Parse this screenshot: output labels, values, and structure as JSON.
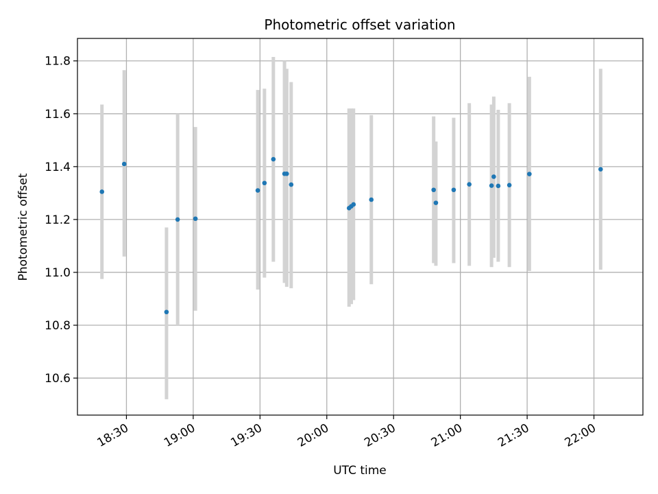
{
  "chart_data": {
    "type": "scatter",
    "title": "Photometric offset variation",
    "xlabel": "UTC time",
    "ylabel": "Photometric offset",
    "x_axis_kind": "time",
    "xlim": [
      "18:08",
      "22:22"
    ],
    "ylim": [
      10.46,
      11.885
    ],
    "x_ticks": [
      "18:30",
      "19:00",
      "19:30",
      "20:00",
      "20:30",
      "21:00",
      "21:30",
      "22:00"
    ],
    "y_ticks": [
      10.6,
      10.8,
      11.0,
      11.2,
      11.4,
      11.6,
      11.8
    ],
    "grid": true,
    "error_bar_color": "#d3d3d3",
    "point_color": "#1f77b4",
    "points": [
      {
        "x": "18:19",
        "y": 11.305,
        "lo": 10.975,
        "hi": 11.635
      },
      {
        "x": "18:29",
        "y": 11.41,
        "lo": 11.06,
        "hi": 11.765
      },
      {
        "x": "18:48",
        "y": 10.85,
        "lo": 10.52,
        "hi": 11.17
      },
      {
        "x": "18:53",
        "y": 11.2,
        "lo": 10.8,
        "hi": 11.6
      },
      {
        "x": "19:01",
        "y": 11.203,
        "lo": 10.855,
        "hi": 11.55
      },
      {
        "x": "19:29",
        "y": 11.31,
        "lo": 10.935,
        "hi": 11.69
      },
      {
        "x": "19:32",
        "y": 11.338,
        "lo": 10.98,
        "hi": 11.695
      },
      {
        "x": "19:36",
        "y": 11.428,
        "lo": 11.04,
        "hi": 11.815
      },
      {
        "x": "19:41",
        "y": 11.373,
        "lo": 10.96,
        "hi": 11.8
      },
      {
        "x": "19:42",
        "y": 11.373,
        "lo": 10.945,
        "hi": 11.77
      },
      {
        "x": "19:44",
        "y": 11.332,
        "lo": 10.94,
        "hi": 11.72
      },
      {
        "x": "20:10",
        "y": 11.243,
        "lo": 10.87,
        "hi": 11.62
      },
      {
        "x": "20:11",
        "y": 11.25,
        "lo": 10.88,
        "hi": 11.62
      },
      {
        "x": "20:12",
        "y": 11.257,
        "lo": 10.895,
        "hi": 11.62
      },
      {
        "x": "20:20",
        "y": 11.275,
        "lo": 10.955,
        "hi": 11.595
      },
      {
        "x": "20:48",
        "y": 11.312,
        "lo": 11.035,
        "hi": 11.59
      },
      {
        "x": "20:49",
        "y": 11.263,
        "lo": 11.025,
        "hi": 11.495
      },
      {
        "x": "20:57",
        "y": 11.312,
        "lo": 11.035,
        "hi": 11.585
      },
      {
        "x": "21:04",
        "y": 11.333,
        "lo": 11.025,
        "hi": 11.64
      },
      {
        "x": "21:14",
        "y": 11.328,
        "lo": 11.02,
        "hi": 11.635
      },
      {
        "x": "21:15",
        "y": 11.362,
        "lo": 11.055,
        "hi": 11.665
      },
      {
        "x": "21:17",
        "y": 11.327,
        "lo": 11.04,
        "hi": 11.615
      },
      {
        "x": "21:22",
        "y": 11.33,
        "lo": 11.02,
        "hi": 11.64
      },
      {
        "x": "21:31",
        "y": 11.372,
        "lo": 11.005,
        "hi": 11.74
      },
      {
        "x": "22:03",
        "y": 11.39,
        "lo": 11.01,
        "hi": 11.77
      }
    ]
  }
}
